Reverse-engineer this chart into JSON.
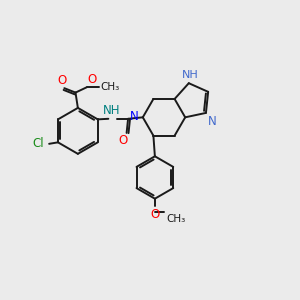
{
  "bg_color": "#ebebeb",
  "bond_color": "#1a1a1a",
  "bond_width": 1.4,
  "figsize": [
    3.0,
    3.0
  ],
  "dpi": 100,
  "xlim": [
    0,
    10
  ],
  "ylim": [
    0,
    10
  ]
}
